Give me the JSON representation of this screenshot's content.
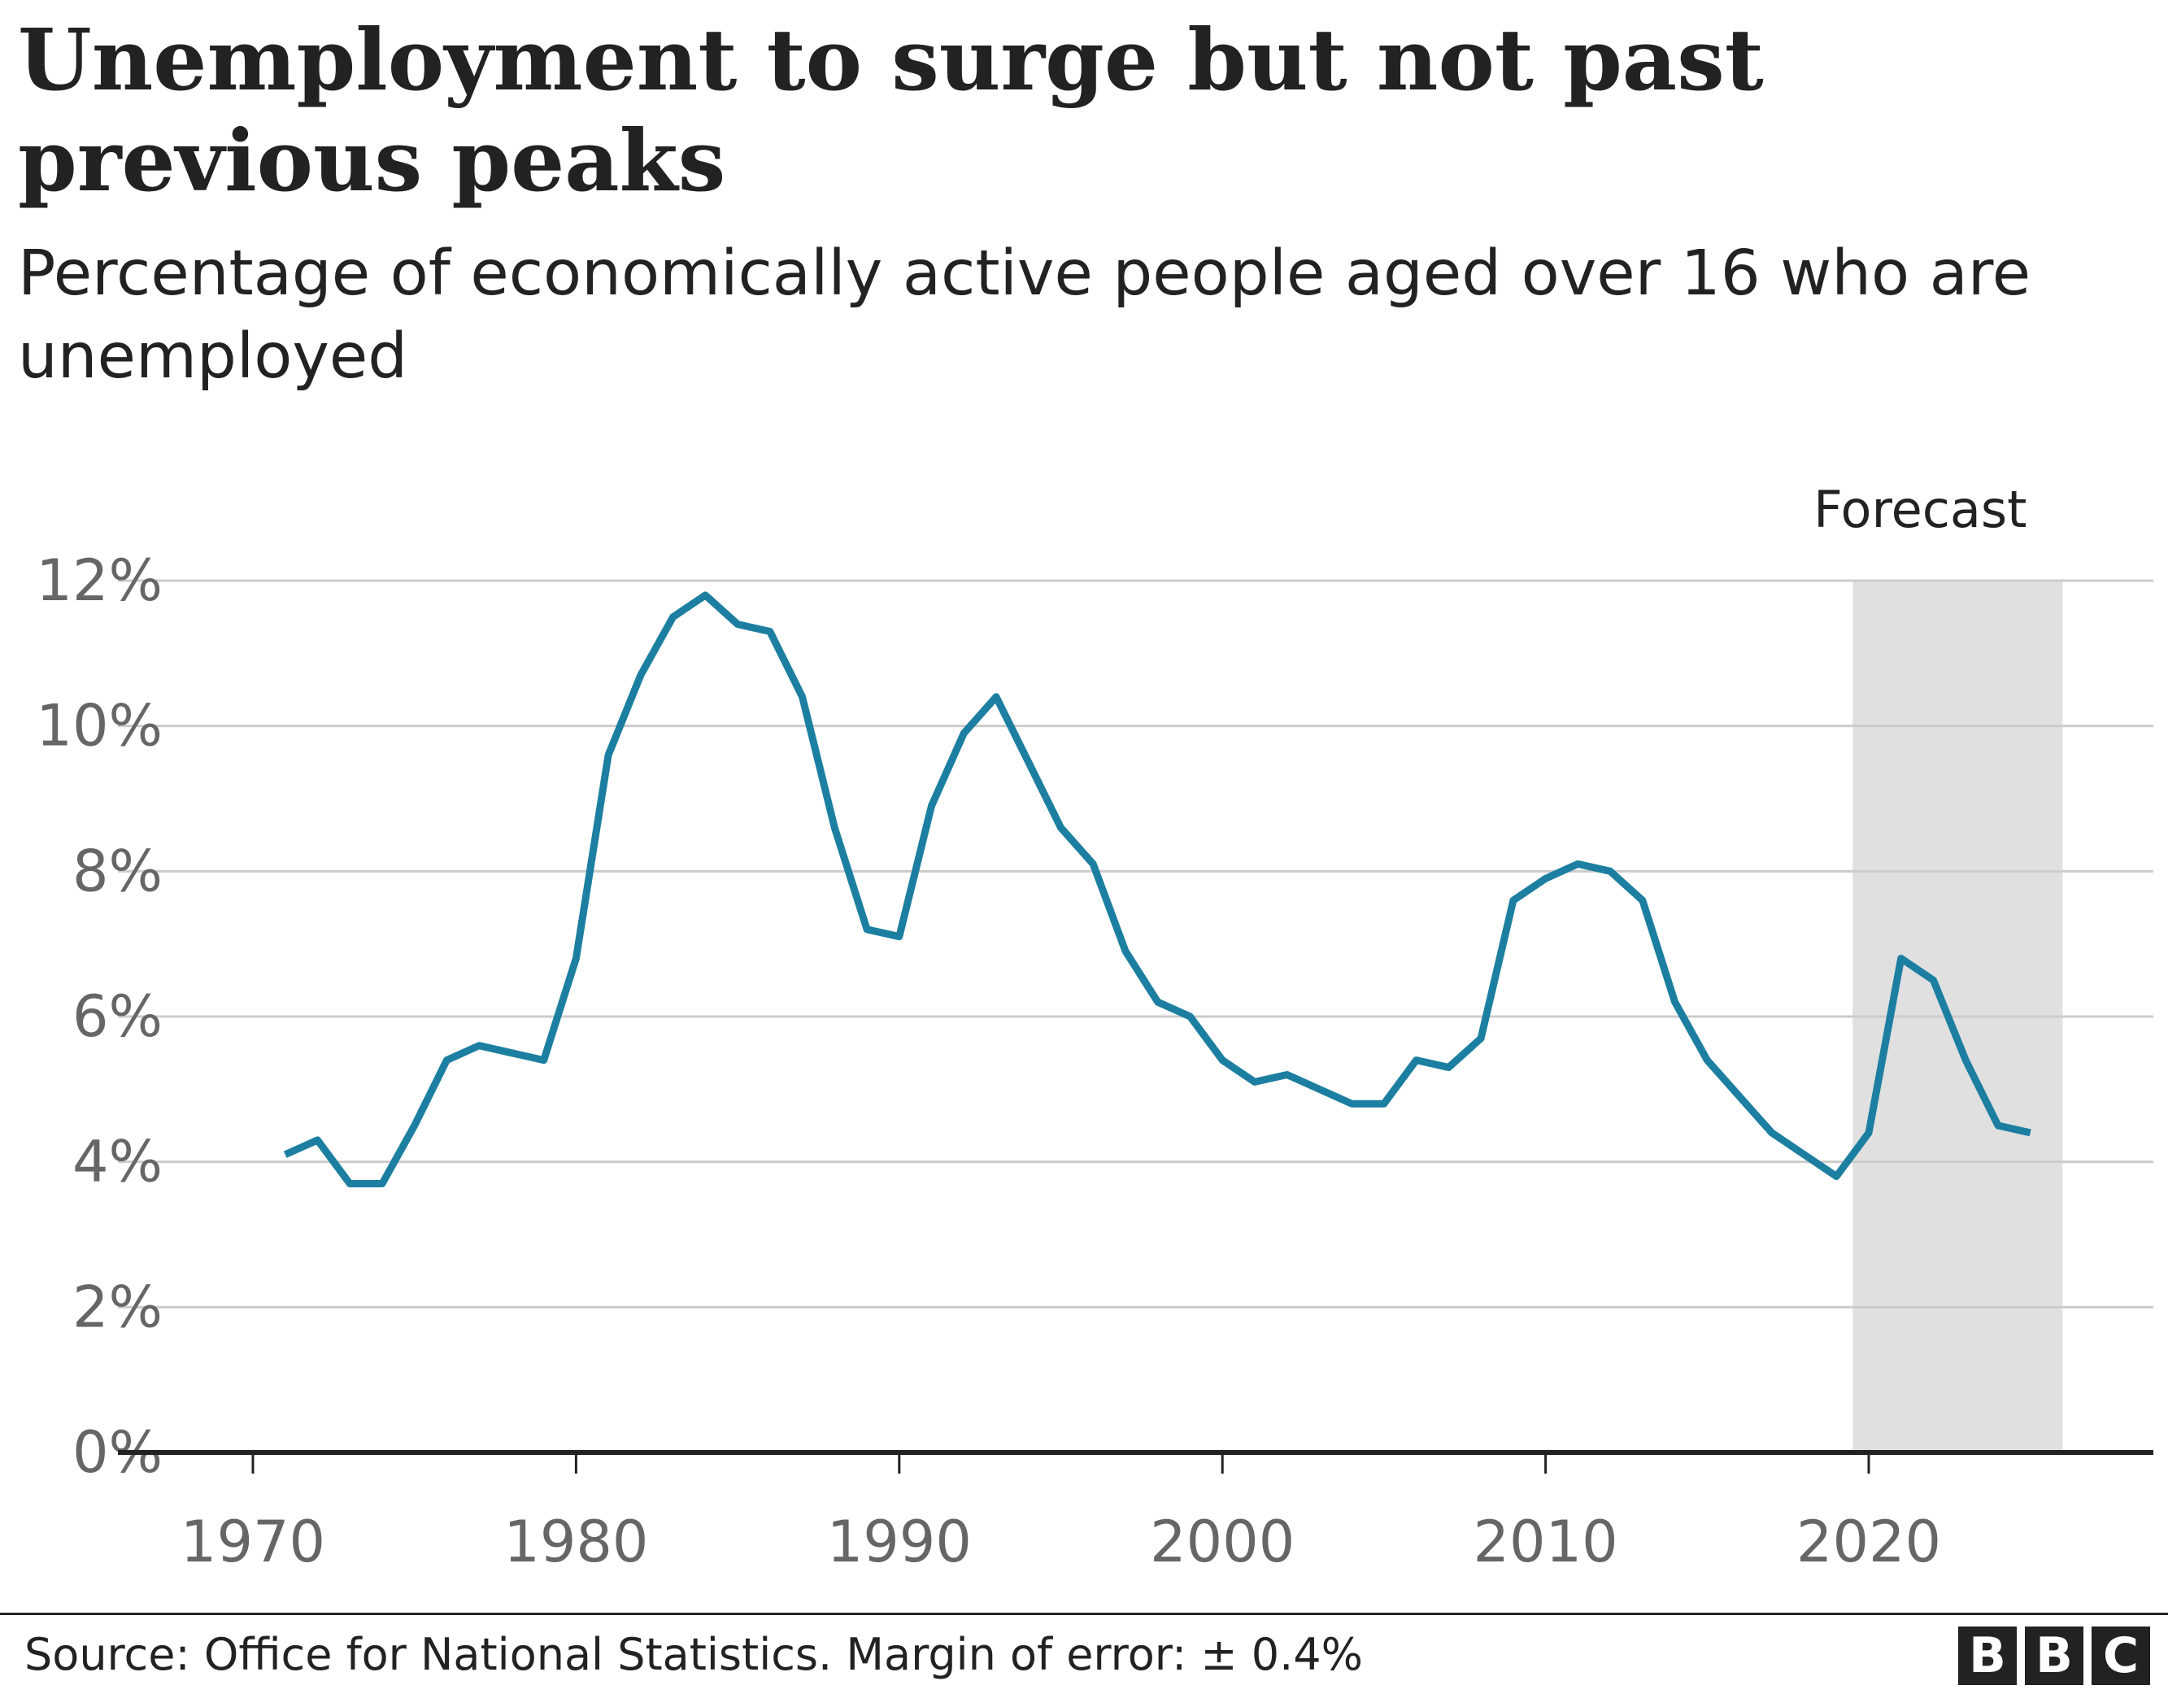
{
  "header": {
    "title": "Unemployment to surge but not past previous peaks",
    "subtitle": "Percentage of economically active people aged over 16 who are unemployed"
  },
  "footer": {
    "source": "Source: Office for National Statistics. Margin of error: ± 0.4%",
    "logo_letters": [
      "B",
      "B",
      "C"
    ]
  },
  "colors": {
    "line": "#1c7fa1",
    "forecast_band": "#e0e0e0",
    "grid": "#cccccc",
    "axis": "#222222",
    "tick_text": "#666666",
    "text": "#222222"
  },
  "chart_data": {
    "type": "line",
    "title": "Unemployment to surge but not past previous peaks",
    "subtitle": "Percentage of economically active people aged over 16 who are unemployed",
    "xlabel": "",
    "ylabel": "",
    "ylim": [
      0,
      12
    ],
    "xlim": [
      1970,
      2027
    ],
    "x_ticks": [
      1970,
      1980,
      1990,
      2000,
      2010,
      2020
    ],
    "y_ticks": [
      0,
      2,
      4,
      6,
      8,
      10,
      12
    ],
    "y_tick_labels": [
      "0%",
      "2%",
      "4%",
      "6%",
      "8%",
      "10%",
      "12%"
    ],
    "grid": true,
    "forecast": {
      "label": "Forecast",
      "start": 2019.5,
      "end": 2026
    },
    "x": [
      1971,
      1972,
      1973,
      1974,
      1975,
      1976,
      1977,
      1978,
      1979,
      1980,
      1981,
      1982,
      1983,
      1984,
      1985,
      1986,
      1987,
      1988,
      1989,
      1990,
      1991,
      1992,
      1993,
      1994,
      1995,
      1996,
      1997,
      1998,
      1999,
      2000,
      2001,
      2002,
      2003,
      2004,
      2005,
      2006,
      2007,
      2008,
      2009,
      2010,
      2011,
      2012,
      2013,
      2014,
      2015,
      2016,
      2017,
      2018,
      2019,
      2020,
      2021,
      2022,
      2023,
      2024,
      2025
    ],
    "values": [
      4.1,
      4.3,
      3.7,
      3.7,
      4.5,
      5.4,
      5.6,
      5.5,
      5.4,
      6.8,
      9.6,
      10.7,
      11.5,
      11.8,
      11.4,
      11.3,
      10.4,
      8.6,
      7.2,
      7.1,
      8.9,
      9.9,
      10.4,
      9.5,
      8.6,
      8.1,
      6.9,
      6.2,
      6.0,
      5.4,
      5.1,
      5.2,
      5.0,
      4.8,
      4.8,
      5.4,
      5.3,
      5.7,
      7.6,
      7.9,
      8.1,
      8.0,
      7.6,
      6.2,
      5.4,
      4.9,
      4.4,
      4.1,
      3.8,
      4.4,
      6.8,
      6.5,
      5.4,
      4.5,
      4.4
    ]
  }
}
